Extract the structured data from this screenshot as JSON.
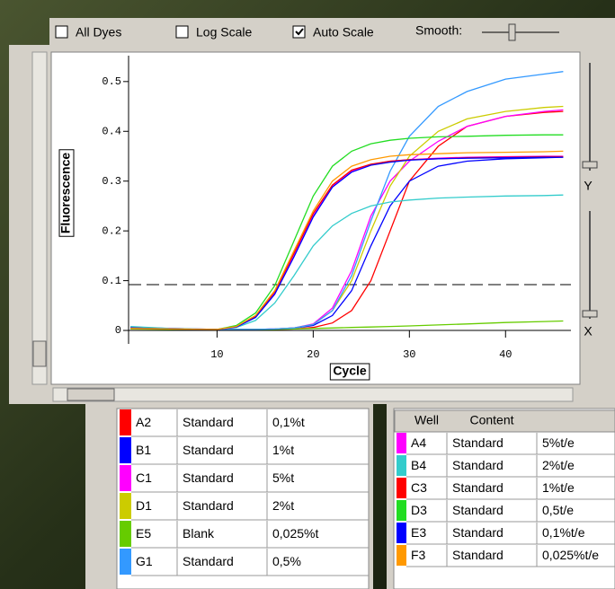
{
  "toolbar": {
    "checkboxes": [
      {
        "label": "All Dyes",
        "checked": false
      },
      {
        "label": "Log Scale",
        "checked": false
      },
      {
        "label": "Auto Scale",
        "checked": true
      }
    ],
    "smooth_label": "Smooth:"
  },
  "side_labels": {
    "y": "Y",
    "x": "X"
  },
  "chart_data": {
    "type": "line",
    "y_label": "Fluorescence",
    "x_label": "Cycle",
    "x": [
      1,
      5,
      10,
      12,
      14,
      16,
      18,
      20,
      22,
      24,
      26,
      28,
      30,
      33,
      36,
      40,
      44,
      46
    ],
    "xlim": [
      0.8,
      46.8
    ],
    "ylim": [
      -0.027,
      0.552
    ],
    "xticks": [
      10,
      20,
      30,
      40
    ],
    "yticks": [
      0,
      0.1,
      0.2,
      0.3,
      0.4,
      0.5
    ],
    "threshold": 0.092,
    "series": [
      {
        "name": "A2",
        "color": "#ff0000",
        "values": [
          0.004,
          0.003,
          0.002,
          0.002,
          0.002,
          0.002,
          0.003,
          0.006,
          0.015,
          0.04,
          0.1,
          0.2,
          0.3,
          0.37,
          0.41,
          0.43,
          0.438,
          0.44
        ]
      },
      {
        "name": "B1",
        "color": "#0000ff",
        "values": [
          0.005,
          0.003,
          0.002,
          0.002,
          0.002,
          0.003,
          0.005,
          0.01,
          0.03,
          0.08,
          0.17,
          0.25,
          0.3,
          0.33,
          0.34,
          0.345,
          0.347,
          0.348
        ]
      },
      {
        "name": "C1",
        "color": "#ff00ff",
        "values": [
          0.005,
          0.003,
          0.002,
          0.002,
          0.002,
          0.003,
          0.005,
          0.013,
          0.045,
          0.12,
          0.23,
          0.3,
          0.34,
          0.38,
          0.41,
          0.43,
          0.44,
          0.443
        ]
      },
      {
        "name": "D1",
        "color": "#cccc00",
        "values": [
          0.005,
          0.003,
          0.002,
          0.002,
          0.002,
          0.003,
          0.005,
          0.012,
          0.04,
          0.1,
          0.2,
          0.29,
          0.35,
          0.4,
          0.425,
          0.44,
          0.448,
          0.45
        ]
      },
      {
        "name": "E5",
        "color": "#66cc00",
        "values": [
          0.003,
          0.002,
          0.002,
          0.002,
          0.002,
          0.002,
          0.003,
          0.004,
          0.005,
          0.006,
          0.007,
          0.008,
          0.009,
          0.011,
          0.013,
          0.016,
          0.018,
          0.019
        ]
      },
      {
        "name": "G1",
        "color": "#3399ff",
        "values": [
          0.006,
          0.004,
          0.002,
          0.002,
          0.002,
          0.003,
          0.005,
          0.012,
          0.04,
          0.11,
          0.22,
          0.32,
          0.39,
          0.45,
          0.48,
          0.505,
          0.515,
          0.52
        ]
      },
      {
        "name": "A4",
        "color": "#ff00ff",
        "values": [
          0.006,
          0.004,
          0.002,
          0.007,
          0.027,
          0.075,
          0.15,
          0.23,
          0.29,
          0.32,
          0.333,
          0.34,
          0.343,
          0.346,
          0.348,
          0.349,
          0.35,
          0.35
        ]
      },
      {
        "name": "B4",
        "color": "#33cccc",
        "values": [
          0.008,
          0.004,
          0.002,
          0.006,
          0.02,
          0.055,
          0.11,
          0.17,
          0.21,
          0.235,
          0.25,
          0.258,
          0.262,
          0.266,
          0.268,
          0.27,
          0.271,
          0.272
        ]
      },
      {
        "name": "C3",
        "color": "#ff0000",
        "values": [
          0.005,
          0.003,
          0.002,
          0.007,
          0.028,
          0.078,
          0.155,
          0.235,
          0.292,
          0.322,
          0.334,
          0.34,
          0.343,
          0.345,
          0.347,
          0.348,
          0.349,
          0.349
        ]
      },
      {
        "name": "D3",
        "color": "#22dd22",
        "values": [
          0.005,
          0.003,
          0.002,
          0.01,
          0.035,
          0.09,
          0.18,
          0.27,
          0.33,
          0.36,
          0.375,
          0.382,
          0.386,
          0.389,
          0.39,
          0.392,
          0.393,
          0.393
        ]
      },
      {
        "name": "E3",
        "color": "#0000ff",
        "values": [
          0.005,
          0.003,
          0.002,
          0.007,
          0.026,
          0.073,
          0.148,
          0.228,
          0.288,
          0.318,
          0.332,
          0.338,
          0.342,
          0.345,
          0.346,
          0.347,
          0.348,
          0.348
        ]
      },
      {
        "name": "F3",
        "color": "#ff9900",
        "values": [
          0.004,
          0.003,
          0.002,
          0.008,
          0.03,
          0.08,
          0.16,
          0.24,
          0.3,
          0.33,
          0.343,
          0.35,
          0.353,
          0.355,
          0.357,
          0.358,
          0.359,
          0.36
        ]
      }
    ]
  },
  "tables": [
    {
      "rows": [
        [
          "Standard",
          "0,1%t"
        ],
        [
          "Standard",
          "1%t"
        ],
        [
          "Standard",
          "5%t"
        ],
        [
          "Standard",
          "2%t"
        ],
        [
          "Blank",
          "0,025%t"
        ],
        [
          "Standard",
          "0,5%"
        ]
      ]
    },
    {
      "header": [
        "Well",
        "Content"
      ],
      "rows": [
        [
          "Standard",
          "5%t/e"
        ],
        [
          "Standard",
          "2%t/e"
        ],
        [
          "Standard",
          "1%t/e"
        ],
        [
          "Standard",
          "0,5t/e"
        ],
        [
          "Standard",
          "0,1%t/e"
        ],
        [
          "Standard",
          "0,025%t/e"
        ]
      ]
    }
  ]
}
